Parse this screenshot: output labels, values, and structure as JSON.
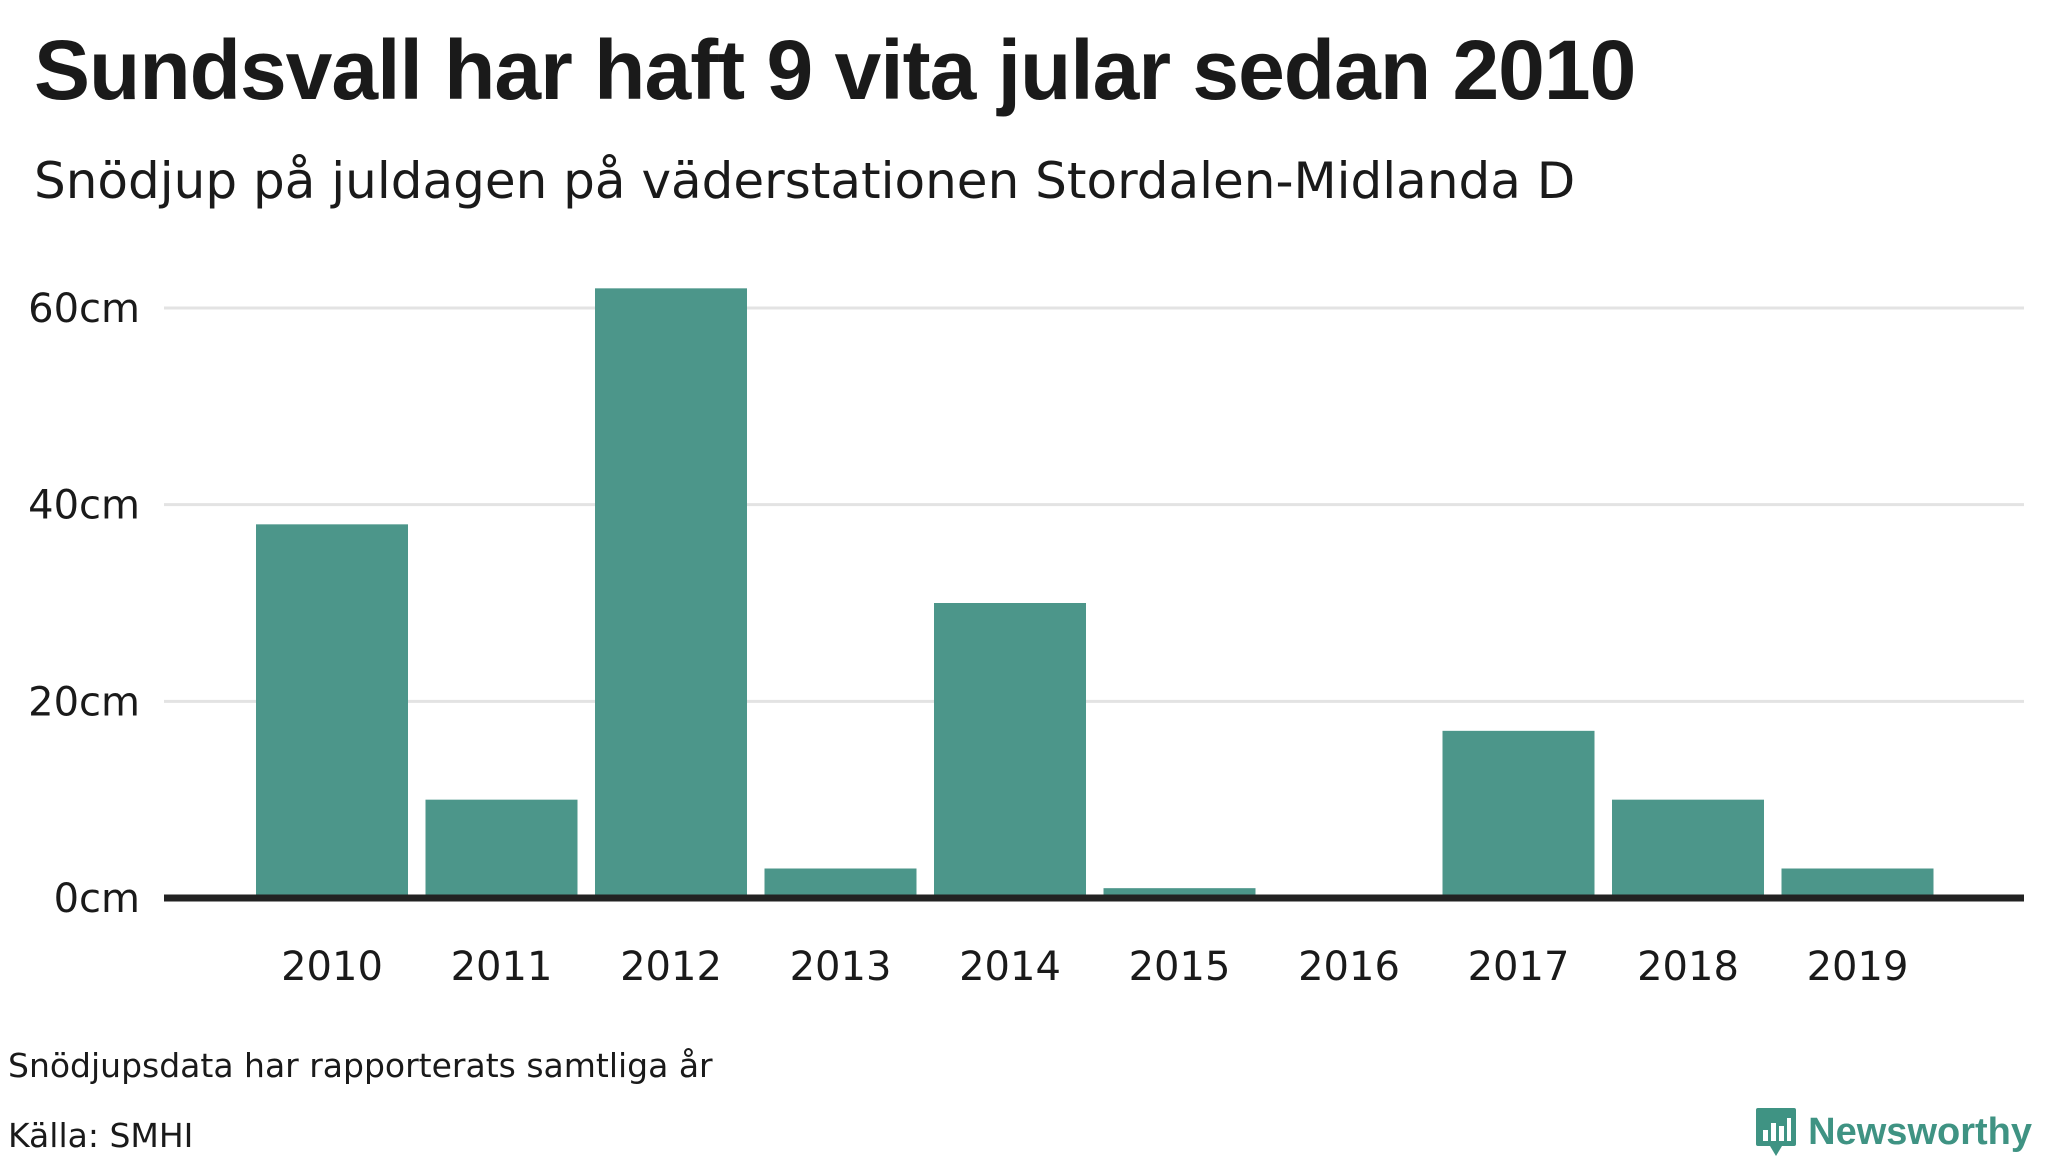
{
  "header": {
    "title": "Sundsvall har haft 9 vita jular sedan 2010",
    "subtitle": "Snödjup på juldagen på väderstationen Stordalen-Midlanda D"
  },
  "colors": {
    "bar": "#4c968a",
    "grid": "#e3e3e3",
    "baseline": "#222222",
    "text": "#1a1a1a",
    "brand": "#3f9383"
  },
  "chart_data": {
    "type": "bar",
    "categories": [
      "2010",
      "2011",
      "2012",
      "2013",
      "2014",
      "2015",
      "2016",
      "2017",
      "2018",
      "2019"
    ],
    "values": [
      38,
      10,
      62,
      3,
      30,
      1,
      0,
      17,
      10,
      3
    ],
    "title": "Sundsvall har haft 9 vita jular sedan 2010",
    "subtitle": "Snödjup på juldagen på väderstationen Stordalen-Midlanda D",
    "xlabel": "",
    "ylabel": "",
    "ylim": [
      0,
      60
    ],
    "yticks": [
      0,
      20,
      40,
      60
    ],
    "ytick_labels": [
      "0cm",
      "20cm",
      "40cm",
      "60cm"
    ],
    "grid": true
  },
  "footer": {
    "note": "Snödjupsdata har rapporterats samtliga år",
    "source": "Källa: SMHI",
    "brand": "Newsworthy",
    "brand_icon": "bar-chart-logo-icon"
  }
}
